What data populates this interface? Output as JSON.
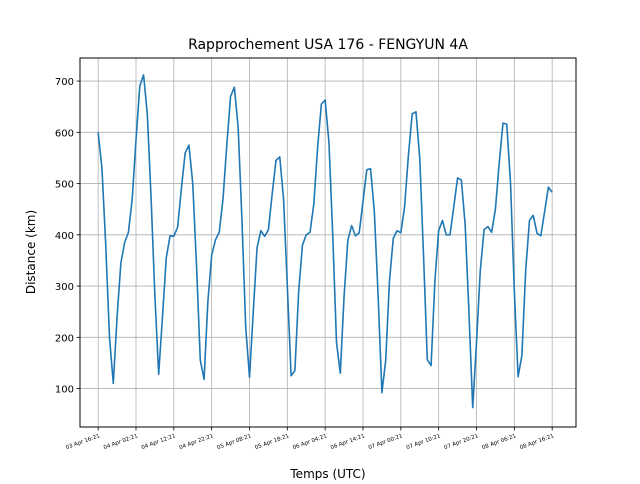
{
  "chart_data": {
    "type": "line",
    "title": "Rapprochement USA 176 - FENGYUN 4A",
    "xlabel": "Temps (UTC)",
    "ylabel": "Distance (km)",
    "x_ticks": [
      {
        "t": 0,
        "label": "03 Apr 16:21"
      },
      {
        "t": 10,
        "label": "04 Apr 02:21"
      },
      {
        "t": 20,
        "label": "04 Apr 12:21"
      },
      {
        "t": 30,
        "label": "04 Apr 22:21"
      },
      {
        "t": 40,
        "label": "05 Apr 08:21"
      },
      {
        "t": 50,
        "label": "05 Apr 18:21"
      },
      {
        "t": 60,
        "label": "06 Apr 04:21"
      },
      {
        "t": 70,
        "label": "06 Apr 14:21"
      },
      {
        "t": 80,
        "label": "07 Apr 00:21"
      },
      {
        "t": 90,
        "label": "07 Apr 10:21"
      },
      {
        "t": 100,
        "label": "07 Apr 20:21"
      },
      {
        "t": 110,
        "label": "08 Apr 06:21"
      },
      {
        "t": 120,
        "label": "08 Apr 16:21"
      }
    ],
    "y_ticks": [
      100,
      200,
      300,
      400,
      500,
      600,
      700
    ],
    "xlim": [
      -4.8,
      126.3
    ],
    "ylim": [
      25,
      745
    ],
    "grid": true,
    "color": "#1f77b4",
    "series": [
      {
        "points": [
          [
            0,
            600
          ],
          [
            1,
            530
          ],
          [
            2,
            380
          ],
          [
            3,
            200
          ],
          [
            4,
            110
          ],
          [
            5,
            240
          ],
          [
            6,
            345
          ],
          [
            7,
            385
          ],
          [
            8,
            405
          ],
          [
            9,
            470
          ],
          [
            10,
            585
          ],
          [
            11,
            690
          ],
          [
            12,
            712
          ],
          [
            13,
            635
          ],
          [
            14,
            470
          ],
          [
            15,
            280
          ],
          [
            16,
            128
          ],
          [
            17,
            240
          ],
          [
            18,
            355
          ],
          [
            19,
            398
          ],
          [
            20,
            397
          ],
          [
            21,
            415
          ],
          [
            22,
            490
          ],
          [
            23,
            560
          ],
          [
            24,
            575
          ],
          [
            25,
            500
          ],
          [
            26,
            340
          ],
          [
            27,
            155
          ],
          [
            28,
            118
          ],
          [
            29,
            270
          ],
          [
            30,
            360
          ],
          [
            31,
            390
          ],
          [
            32,
            405
          ],
          [
            33,
            470
          ],
          [
            34,
            575
          ],
          [
            35,
            670
          ],
          [
            36,
            688
          ],
          [
            37,
            610
          ],
          [
            38,
            430
          ],
          [
            39,
            220
          ],
          [
            40,
            122
          ],
          [
            41,
            250
          ],
          [
            42,
            375
          ],
          [
            43,
            408
          ],
          [
            44,
            397
          ],
          [
            45,
            410
          ],
          [
            46,
            480
          ],
          [
            47,
            545
          ],
          [
            48,
            552
          ],
          [
            49,
            470
          ],
          [
            50,
            300
          ],
          [
            51,
            125
          ],
          [
            52,
            135
          ],
          [
            53,
            290
          ],
          [
            54,
            380
          ],
          [
            55,
            400
          ],
          [
            56,
            405
          ],
          [
            57,
            460
          ],
          [
            58,
            570
          ],
          [
            59,
            655
          ],
          [
            60,
            663
          ],
          [
            61,
            580
          ],
          [
            62,
            400
          ],
          [
            63,
            190
          ],
          [
            64,
            130
          ],
          [
            65,
            280
          ],
          [
            66,
            390
          ],
          [
            67,
            418
          ],
          [
            68,
            398
          ],
          [
            69,
            404
          ],
          [
            70,
            465
          ],
          [
            71,
            527
          ],
          [
            72,
            529
          ],
          [
            73,
            445
          ],
          [
            74,
            280
          ],
          [
            75,
            92
          ],
          [
            76,
            155
          ],
          [
            77,
            310
          ],
          [
            78,
            393
          ],
          [
            79,
            408
          ],
          [
            80,
            404
          ],
          [
            81,
            455
          ],
          [
            82,
            555
          ],
          [
            83,
            636
          ],
          [
            84,
            640
          ],
          [
            85,
            550
          ],
          [
            86,
            360
          ],
          [
            87,
            156
          ],
          [
            88,
            145
          ],
          [
            89,
            310
          ],
          [
            90,
            408
          ],
          [
            91,
            428
          ],
          [
            92,
            400
          ],
          [
            93,
            400
          ],
          [
            94,
            455
          ],
          [
            95,
            511
          ],
          [
            96,
            507
          ],
          [
            97,
            420
          ],
          [
            98,
            250
          ],
          [
            99,
            63
          ],
          [
            100,
            190
          ],
          [
            101,
            330
          ],
          [
            102,
            410
          ],
          [
            103,
            416
          ],
          [
            104,
            405
          ],
          [
            105,
            450
          ],
          [
            106,
            540
          ],
          [
            107,
            618
          ],
          [
            108,
            616
          ],
          [
            109,
            500
          ],
          [
            110,
            290
          ],
          [
            111,
            123
          ],
          [
            112,
            165
          ],
          [
            113,
            330
          ],
          [
            114,
            428
          ],
          [
            115,
            438
          ],
          [
            116,
            403
          ],
          [
            117,
            398
          ],
          [
            118,
            445
          ],
          [
            119,
            493
          ],
          [
            120,
            483
          ]
        ]
      }
    ]
  }
}
